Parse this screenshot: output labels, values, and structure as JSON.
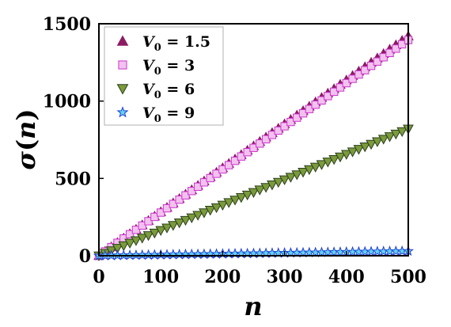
{
  "chart_data": {
    "type": "scatter",
    "xlabel": "n",
    "ylabel_parts": [
      "σ",
      "(",
      "n",
      ")"
    ],
    "xlim": [
      0,
      500
    ],
    "ylim": [
      0,
      1500
    ],
    "xticks": [
      0,
      100,
      200,
      300,
      400,
      500
    ],
    "yticks": [
      0,
      500,
      1000,
      1500
    ],
    "grid": false,
    "legend_position": "top-left",
    "series": [
      {
        "name": "V0 = 1.5",
        "legend": {
          "var": "V",
          "sub": "0",
          "eq": " = 1.5"
        },
        "marker": "triangle-up",
        "color": "#8b1c62",
        "fill": "#8b1c62",
        "start": [
          0,
          0
        ],
        "end": [
          500,
          1420
        ],
        "samples": 51
      },
      {
        "name": "V0 = 3",
        "legend": {
          "var": "V",
          "sub": "0",
          "eq": " = 3"
        },
        "marker": "square",
        "color": "#cc33cc",
        "fill": "#f2c2ee",
        "start": [
          0,
          0
        ],
        "end": [
          500,
          1395
        ],
        "samples": 51
      },
      {
        "name": "V0 = 6",
        "legend": {
          "var": "V",
          "sub": "0",
          "eq": " = 6"
        },
        "marker": "triangle-down",
        "color": "#2a3d1a",
        "fill": "#7a9a3c",
        "start": [
          0,
          0
        ],
        "end": [
          500,
          820
        ],
        "samples": 51
      },
      {
        "name": "V0 = 9",
        "legend": {
          "var": "V",
          "sub": "0",
          "eq": " = 9"
        },
        "marker": "star",
        "color": "#1f3fd6",
        "fill": "#5fd3f0",
        "start": [
          0,
          0
        ],
        "end": [
          500,
          30
        ],
        "samples": 51
      }
    ]
  }
}
